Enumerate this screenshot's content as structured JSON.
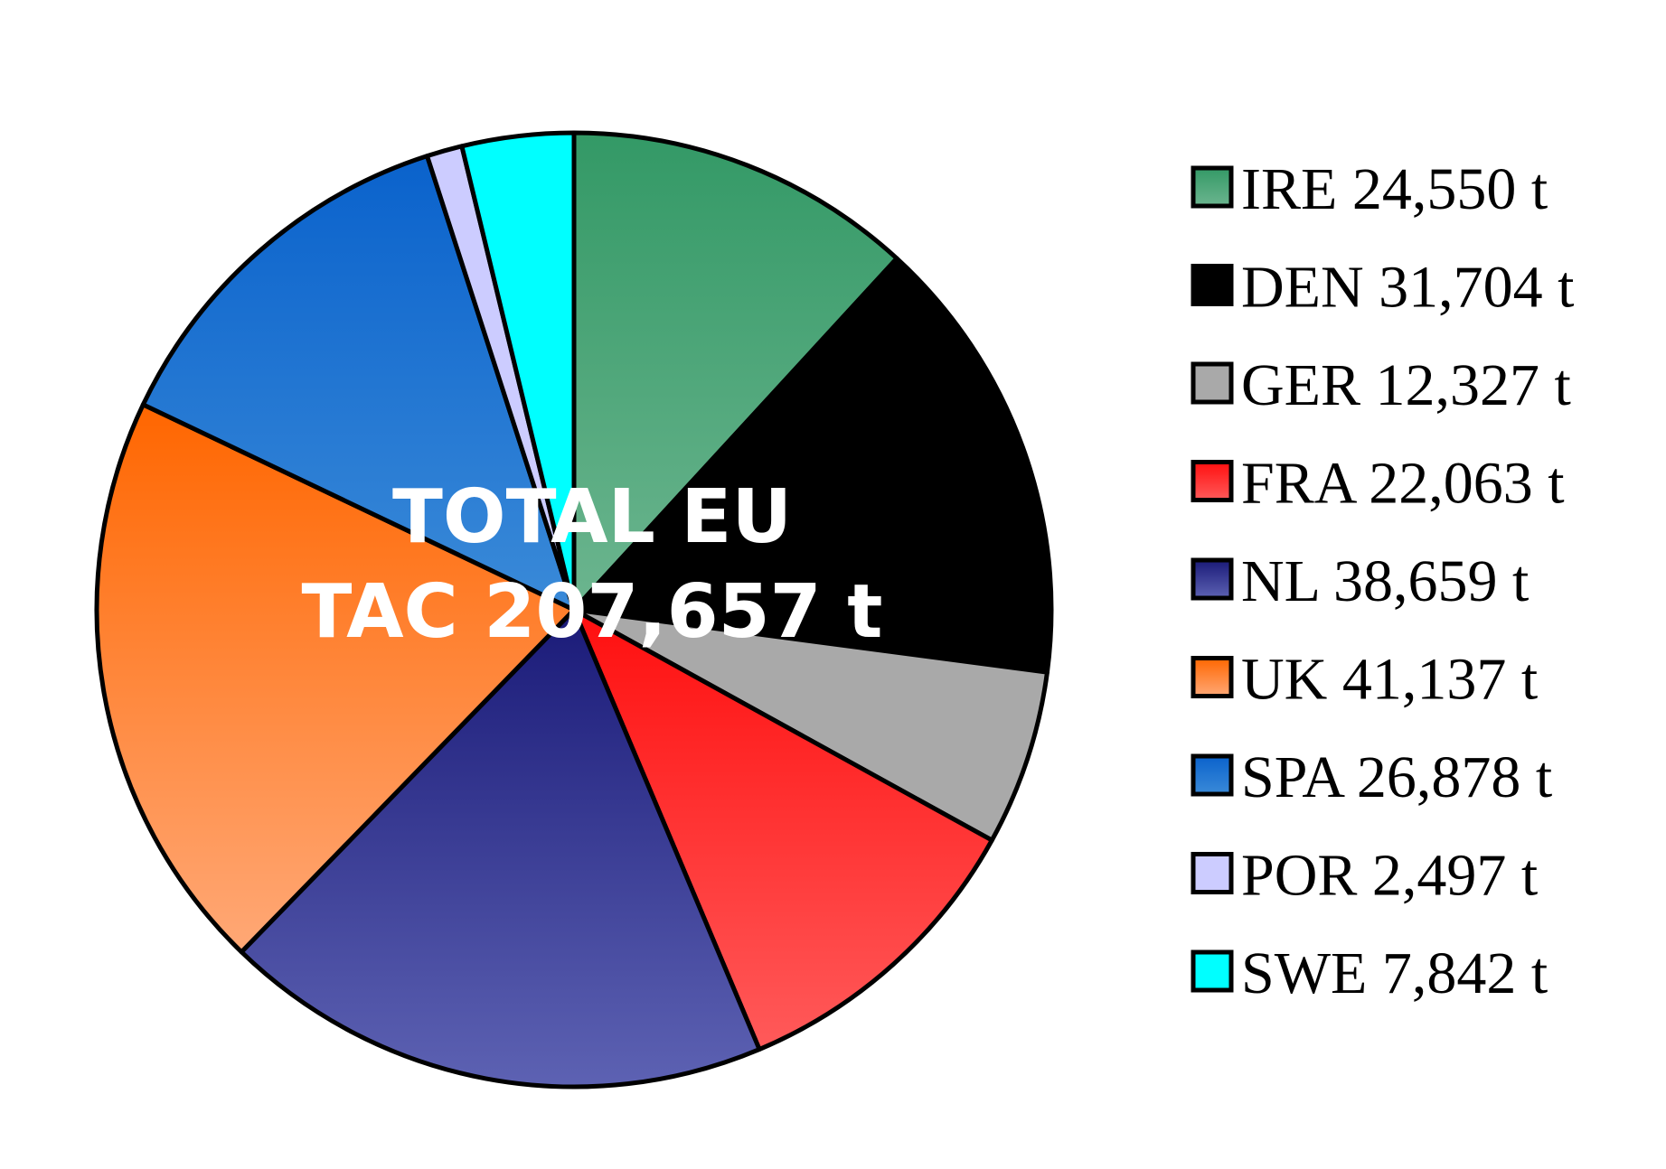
{
  "chart_data": {
    "type": "pie",
    "start_angle_deg": 0,
    "direction": "clockwise",
    "slices": [
      {
        "label": "IRE 24,550 t",
        "name": "IRE",
        "value": 24550,
        "color_top": "#339966",
        "color_bottom": "#6cb58f"
      },
      {
        "label": "DEN 31,704 t",
        "name": "DEN",
        "value": 31704,
        "color_top": "#000000",
        "color_bottom": "#000000"
      },
      {
        "label": "GER 12,327 t",
        "name": "GER",
        "value": 12327,
        "color_top": "#a9a9a9",
        "color_bottom": "#a9a9a9"
      },
      {
        "label": "FRA 22,063 t",
        "name": "FRA",
        "value": 22063,
        "color_top": "#ff0f0f",
        "color_bottom": "#ff5a5a"
      },
      {
        "label": "NL 38,659 t",
        "name": "NL",
        "value": 38659,
        "color_top": "#1a1a78",
        "color_bottom": "#5d62b3"
      },
      {
        "label": "UK 41,137 t",
        "name": "UK",
        "value": 41137,
        "color_top": "#ff6600",
        "color_bottom": "#ffa876"
      },
      {
        "label": "SPA 26,878 t",
        "name": "SPA",
        "value": 26878,
        "color_top": "#0a62cc",
        "color_bottom": "#3a8ad8"
      },
      {
        "label": "POR 2,497 t",
        "name": "POR",
        "value": 2497,
        "color_top": "#ccccff",
        "color_bottom": "#ccccff"
      },
      {
        "label": "SWE 7,842 t",
        "name": "SWE",
        "value": 7842,
        "color_top": "#00ffff",
        "color_bottom": "#00ffff"
      }
    ],
    "center_text": [
      "TOTAL  EU",
      "TAC 207,657 t"
    ],
    "legend_placement": "right"
  }
}
